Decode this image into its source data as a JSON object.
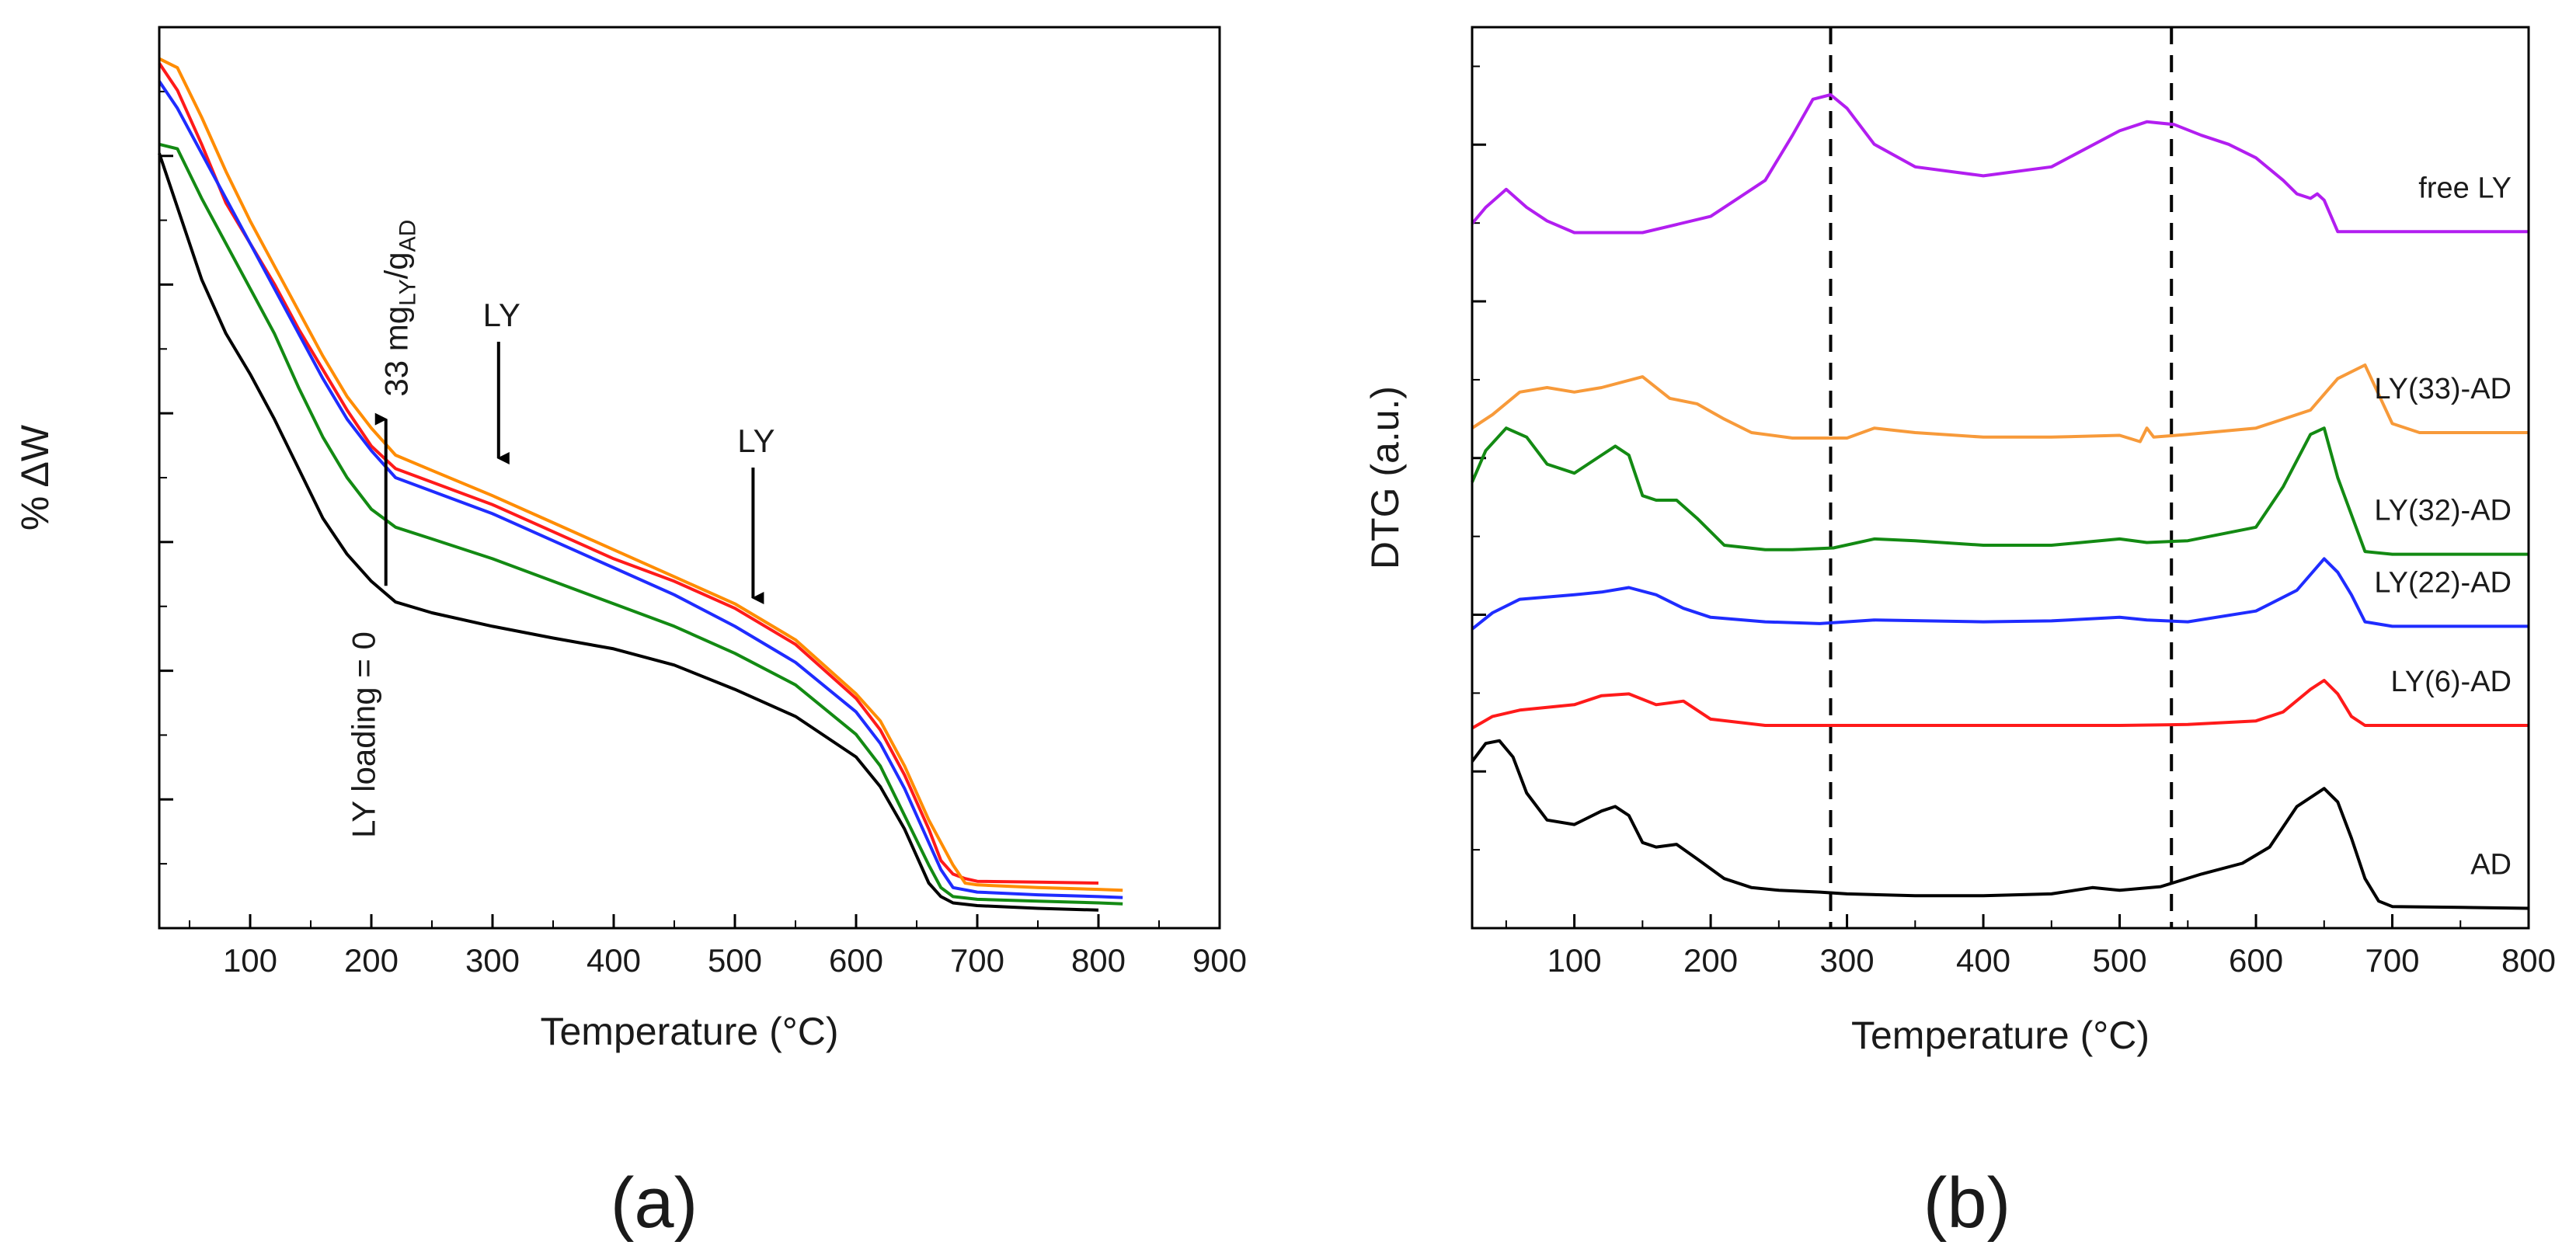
{
  "figure": {
    "panel_labels": [
      "(a)",
      "(b)"
    ]
  },
  "chart_data": [
    {
      "type": "line",
      "panel": "(a)",
      "title": "",
      "xlabel": "Temperature (°C)",
      "ylabel": "% ΔW",
      "xlim": [
        25,
        900
      ],
      "ylim": [
        0,
        1
      ],
      "xticks": [
        100,
        200,
        300,
        400,
        500,
        600,
        700,
        800,
        900
      ],
      "y_tick_labels_shown": false,
      "series": [
        {
          "name": "LY loading = 0",
          "color": "#000000",
          "x": [
            25,
            40,
            60,
            80,
            100,
            120,
            140,
            160,
            180,
            200,
            220,
            250,
            300,
            350,
            400,
            450,
            500,
            550,
            600,
            620,
            640,
            650,
            660,
            670,
            680,
            700,
            750,
            800
          ],
          "y": [
            0.86,
            0.8,
            0.72,
            0.66,
            0.615,
            0.565,
            0.51,
            0.455,
            0.415,
            0.385,
            0.362,
            0.35,
            0.335,
            0.322,
            0.31,
            0.292,
            0.265,
            0.235,
            0.19,
            0.157,
            0.11,
            0.08,
            0.05,
            0.035,
            0.028,
            0.025,
            0.022,
            0.02
          ]
        },
        {
          "name": "LY(6)-AD",
          "color": "#ff1a1a",
          "x": [
            25,
            40,
            60,
            80,
            100,
            120,
            140,
            160,
            180,
            200,
            220,
            250,
            300,
            350,
            400,
            450,
            500,
            550,
            600,
            620,
            640,
            660,
            670,
            680,
            690,
            700,
            750,
            800
          ],
          "y": [
            0.96,
            0.93,
            0.87,
            0.805,
            0.76,
            0.715,
            0.665,
            0.62,
            0.575,
            0.535,
            0.51,
            0.495,
            0.47,
            0.44,
            0.41,
            0.385,
            0.355,
            0.315,
            0.255,
            0.22,
            0.17,
            0.11,
            0.075,
            0.06,
            0.055,
            0.052,
            0.051,
            0.05
          ]
        },
        {
          "name": "LY(22)-AD",
          "color": "#1f2cff",
          "x": [
            25,
            40,
            60,
            80,
            100,
            120,
            140,
            160,
            180,
            200,
            220,
            250,
            300,
            350,
            400,
            450,
            500,
            550,
            600,
            620,
            640,
            660,
            670,
            680,
            700,
            750,
            800,
            820
          ],
          "y": [
            0.94,
            0.91,
            0.86,
            0.81,
            0.76,
            0.71,
            0.66,
            0.61,
            0.565,
            0.53,
            0.5,
            0.485,
            0.46,
            0.43,
            0.4,
            0.37,
            0.335,
            0.295,
            0.24,
            0.205,
            0.155,
            0.095,
            0.065,
            0.045,
            0.04,
            0.037,
            0.035,
            0.034
          ]
        },
        {
          "name": "LY(32)-AD",
          "color": "#138a13",
          "x": [
            25,
            40,
            60,
            80,
            100,
            120,
            140,
            160,
            180,
            200,
            220,
            250,
            300,
            350,
            400,
            450,
            500,
            550,
            600,
            620,
            640,
            660,
            670,
            680,
            700,
            750,
            800,
            820
          ],
          "y": [
            0.87,
            0.865,
            0.81,
            0.76,
            0.71,
            0.66,
            0.6,
            0.545,
            0.5,
            0.465,
            0.445,
            0.432,
            0.41,
            0.385,
            0.36,
            0.335,
            0.305,
            0.27,
            0.215,
            0.18,
            0.125,
            0.07,
            0.045,
            0.035,
            0.032,
            0.03,
            0.028,
            0.027
          ]
        },
        {
          "name": "LY(33)-AD",
          "color": "#ff8c00",
          "x": [
            25,
            40,
            60,
            80,
            100,
            120,
            140,
            160,
            180,
            200,
            220,
            250,
            300,
            350,
            400,
            450,
            500,
            550,
            600,
            620,
            640,
            660,
            680,
            690,
            700,
            750,
            800,
            820
          ],
          "y": [
            0.965,
            0.955,
            0.9,
            0.84,
            0.785,
            0.735,
            0.685,
            0.635,
            0.59,
            0.555,
            0.525,
            0.508,
            0.48,
            0.45,
            0.42,
            0.39,
            0.36,
            0.32,
            0.26,
            0.23,
            0.18,
            0.12,
            0.07,
            0.05,
            0.048,
            0.045,
            0.043,
            0.042
          ]
        }
      ],
      "annotations": [
        {
          "text": "LY loading = 0",
          "x": 212,
          "orientation": "vertical"
        },
        {
          "text_parts": [
            "33 mg",
            "LY",
            "/g",
            "AD"
          ],
          "subscripts": [
            "LY",
            "AD"
          ],
          "x": 212,
          "orientation": "vertical"
        },
        {
          "text": "LY",
          "x": 305,
          "arrow": "down"
        },
        {
          "text": "LY",
          "x": 515,
          "arrow": "down"
        }
      ]
    },
    {
      "type": "line",
      "panel": "(b)",
      "title": "",
      "xlabel": "Temperature (°C)",
      "ylabel": "DTG (a.u.)",
      "xlim": [
        25,
        800
      ],
      "ylim": [
        0,
        1
      ],
      "xticks": [
        100,
        200,
        300,
        400,
        500,
        600,
        700,
        800
      ],
      "y_tick_labels_shown": false,
      "reference_lines_x": [
        288,
        538
      ],
      "series": [
        {
          "name": "free LY",
          "color": "#b21ef0",
          "label_position": "right",
          "x": [
            25,
            35,
            50,
            65,
            80,
            100,
            150,
            200,
            220,
            240,
            260,
            275,
            288,
            300,
            320,
            350,
            400,
            450,
            500,
            520,
            540,
            560,
            580,
            600,
            620,
            630,
            640,
            645,
            650,
            660,
            680,
            700,
            800
          ],
          "y": [
            0.782,
            0.8,
            0.82,
            0.8,
            0.785,
            0.772,
            0.772,
            0.79,
            0.81,
            0.83,
            0.88,
            0.92,
            0.925,
            0.91,
            0.87,
            0.845,
            0.835,
            0.845,
            0.885,
            0.895,
            0.892,
            0.88,
            0.87,
            0.855,
            0.83,
            0.815,
            0.81,
            0.815,
            0.808,
            0.773,
            0.773,
            0.773,
            0.773
          ]
        },
        {
          "name": "LY(33)-AD",
          "color": "#f79a3a",
          "label_position": "right",
          "x": [
            25,
            40,
            60,
            80,
            100,
            120,
            150,
            170,
            190,
            210,
            230,
            260,
            300,
            320,
            350,
            400,
            450,
            500,
            515,
            520,
            525,
            550,
            600,
            640,
            660,
            680,
            700,
            720,
            800
          ],
          "y": [
            0.555,
            0.57,
            0.595,
            0.6,
            0.595,
            0.6,
            0.612,
            0.588,
            0.582,
            0.565,
            0.55,
            0.544,
            0.544,
            0.555,
            0.55,
            0.545,
            0.545,
            0.547,
            0.54,
            0.555,
            0.545,
            0.548,
            0.555,
            0.575,
            0.61,
            0.625,
            0.56,
            0.55,
            0.55
          ]
        },
        {
          "name": "LY(32)-AD",
          "color": "#138a13",
          "label_position": "right",
          "x": [
            25,
            35,
            50,
            65,
            80,
            100,
            120,
            130,
            140,
            150,
            160,
            175,
            190,
            210,
            240,
            260,
            290,
            320,
            350,
            400,
            450,
            500,
            520,
            550,
            600,
            620,
            640,
            650,
            660,
            680,
            700,
            800
          ],
          "y": [
            0.495,
            0.53,
            0.555,
            0.545,
            0.515,
            0.505,
            0.525,
            0.535,
            0.525,
            0.48,
            0.475,
            0.475,
            0.455,
            0.425,
            0.42,
            0.42,
            0.422,
            0.432,
            0.43,
            0.425,
            0.425,
            0.432,
            0.428,
            0.43,
            0.445,
            0.49,
            0.548,
            0.555,
            0.5,
            0.418,
            0.415,
            0.415
          ]
        },
        {
          "name": "LY(22)-AD",
          "color": "#1f2cff",
          "label_position": "right",
          "x": [
            25,
            40,
            60,
            100,
            120,
            140,
            160,
            180,
            200,
            240,
            280,
            320,
            400,
            450,
            500,
            520,
            550,
            600,
            630,
            650,
            660,
            670,
            680,
            700,
            800
          ],
          "y": [
            0.332,
            0.35,
            0.365,
            0.37,
            0.373,
            0.378,
            0.37,
            0.355,
            0.345,
            0.34,
            0.338,
            0.342,
            0.34,
            0.341,
            0.345,
            0.342,
            0.34,
            0.352,
            0.375,
            0.41,
            0.395,
            0.37,
            0.34,
            0.335,
            0.335
          ]
        },
        {
          "name": "LY(6)-AD",
          "color": "#ff1a1a",
          "label_position": "right",
          "x": [
            25,
            40,
            60,
            80,
            100,
            120,
            140,
            160,
            180,
            200,
            240,
            300,
            400,
            500,
            550,
            600,
            620,
            640,
            650,
            660,
            670,
            680,
            700,
            800
          ],
          "y": [
            0.222,
            0.235,
            0.242,
            0.245,
            0.248,
            0.258,
            0.26,
            0.248,
            0.252,
            0.232,
            0.225,
            0.225,
            0.225,
            0.225,
            0.226,
            0.23,
            0.24,
            0.265,
            0.275,
            0.26,
            0.235,
            0.225,
            0.225,
            0.225
          ]
        },
        {
          "name": "AD",
          "color": "#000000",
          "label_position": "right",
          "x": [
            25,
            35,
            45,
            55,
            65,
            80,
            100,
            120,
            130,
            140,
            150,
            160,
            175,
            190,
            210,
            230,
            250,
            280,
            300,
            350,
            400,
            450,
            480,
            500,
            530,
            560,
            590,
            610,
            630,
            650,
            660,
            670,
            680,
            690,
            700,
            750,
            800
          ],
          "y": [
            0.185,
            0.205,
            0.208,
            0.19,
            0.15,
            0.12,
            0.115,
            0.13,
            0.135,
            0.125,
            0.095,
            0.09,
            0.093,
            0.077,
            0.055,
            0.045,
            0.042,
            0.04,
            0.038,
            0.036,
            0.036,
            0.038,
            0.045,
            0.042,
            0.046,
            0.06,
            0.072,
            0.09,
            0.135,
            0.155,
            0.14,
            0.1,
            0.055,
            0.03,
            0.024,
            0.023,
            0.022
          ]
        }
      ]
    }
  ]
}
